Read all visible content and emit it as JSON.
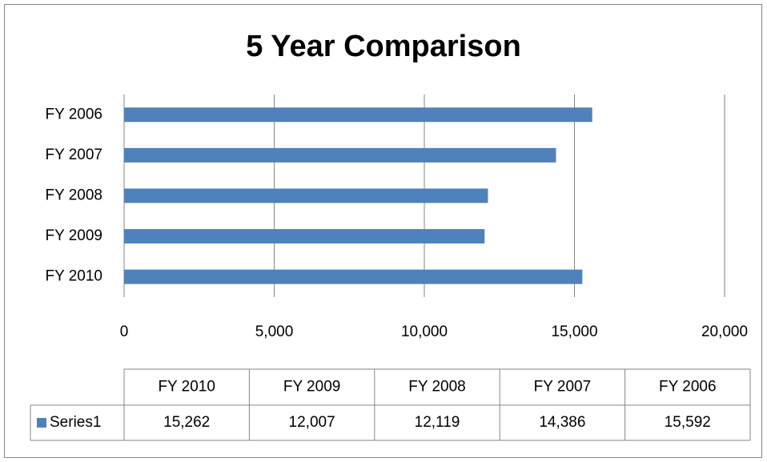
{
  "chart_data": {
    "type": "bar",
    "orientation": "horizontal",
    "title": "5 Year Comparison",
    "categories": [
      "FY 2010",
      "FY 2009",
      "FY 2008",
      "FY 2007",
      "FY 2006"
    ],
    "series": [
      {
        "name": "Series1",
        "color": "#4f81bd",
        "values": [
          15262,
          12007,
          12119,
          14386,
          15592
        ],
        "value_labels": [
          "15,262",
          "12,007",
          "12,119",
          "14,386",
          "15,592"
        ]
      }
    ],
    "xlim": [
      0,
      20000
    ],
    "xticks": [
      0,
      {
        "value": 5000,
        "label": "5,000"
      },
      {
        "value": 10000,
        "label": "10,000"
      },
      {
        "value": 15000,
        "label": "15,000"
      },
      {
        "value": 20000,
        "label": "20,000"
      }
    ],
    "grid": true,
    "data_table": true
  }
}
